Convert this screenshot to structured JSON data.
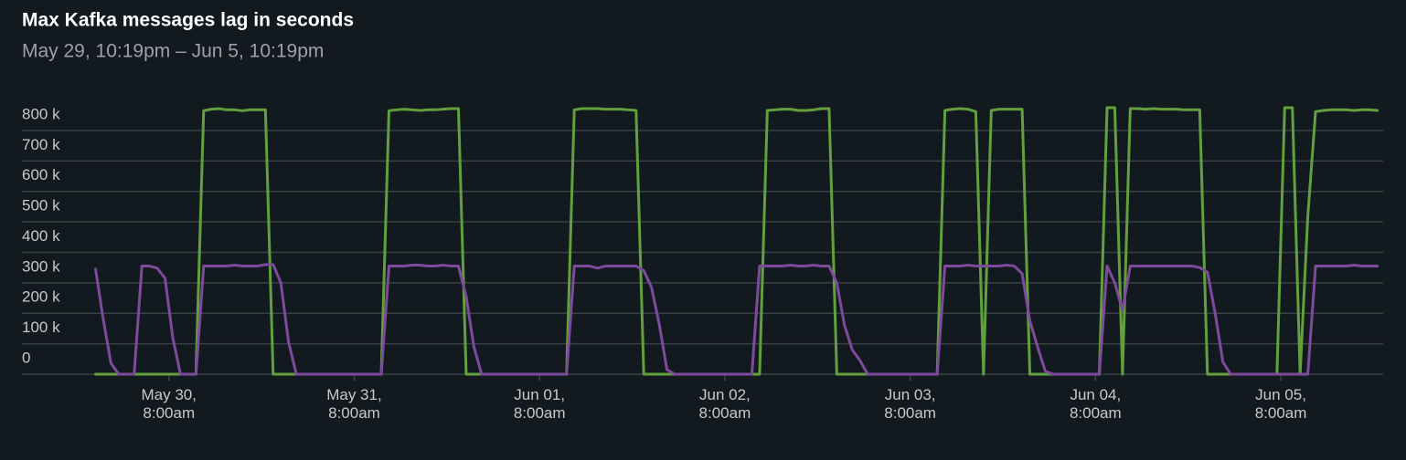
{
  "chart_data": {
    "type": "line",
    "title": "Max Kafka messages lag in seconds",
    "subtitle": "May 29, 10:19pm – Jun 5, 10:19pm",
    "grid": true,
    "xlim": [
      22.32,
      190.32
    ],
    "ylim": [
      0,
      880000
    ],
    "yticks": [
      0,
      {
        "value": 100000,
        "label": "100 k"
      },
      {
        "value": 200000,
        "label": "200 k"
      },
      {
        "value": 300000,
        "label": "300 k"
      },
      {
        "value": 400000,
        "label": "400 k"
      },
      {
        "value": 500000,
        "label": "500 k"
      },
      {
        "value": 600000,
        "label": "600 k"
      },
      {
        "value": 700000,
        "label": "700 k"
      },
      {
        "value": 800000,
        "label": "800 k"
      }
    ],
    "xticks": [
      {
        "value": 32,
        "label": "May 30, 8:00am"
      },
      {
        "value": 56,
        "label": "May 31, 8:00am"
      },
      {
        "value": 80,
        "label": "Jun 01, 8:00am"
      },
      {
        "value": 104,
        "label": "Jun 02, 8:00am"
      },
      {
        "value": 128,
        "label": "Jun 03, 8:00am"
      },
      {
        "value": 152,
        "label": "Jun 04, 8:00am"
      },
      {
        "value": 176,
        "label": "Jun 05, 8:00am"
      }
    ],
    "x": [
      22.5,
      23.5,
      24.5,
      25.5,
      26.5,
      27.5,
      28.5,
      29.5,
      30.5,
      31.5,
      32.5,
      33.5,
      34.5,
      35.5,
      36.5,
      37.5,
      38.5,
      39.5,
      40.5,
      41.5,
      42.5,
      43.5,
      44.5,
      45.5,
      46.5,
      47.5,
      48.5,
      49.5,
      50.5,
      51.5,
      52.5,
      53.5,
      54.5,
      55.5,
      56.5,
      57.5,
      58.5,
      59.5,
      60.5,
      61.5,
      62.5,
      63.5,
      64.5,
      65.5,
      66.5,
      67.5,
      68.5,
      69.5,
      70.5,
      71.5,
      72.5,
      73.5,
      74.5,
      75.5,
      76.5,
      77.5,
      78.5,
      79.5,
      80.5,
      81.5,
      82.5,
      83.5,
      84.5,
      85.5,
      86.5,
      87.5,
      88.5,
      89.5,
      90.5,
      91.5,
      92.5,
      93.5,
      94.5,
      95.5,
      96.5,
      97.5,
      98.5,
      99.5,
      100.5,
      101.5,
      102.5,
      103.5,
      104.5,
      105.5,
      106.5,
      107.5,
      108.5,
      109.5,
      110.5,
      111.5,
      112.5,
      113.5,
      114.5,
      115.5,
      116.5,
      117.5,
      118.5,
      119.5,
      120.5,
      121.5,
      122.5,
      123.5,
      124.5,
      125.5,
      126.5,
      127.5,
      128.5,
      129.5,
      130.5,
      131.5,
      132.5,
      133.5,
      134.5,
      135.5,
      136.5,
      137.5,
      138.5,
      139.5,
      140.5,
      141.5,
      142.5,
      143.5,
      144.5,
      145.5,
      146.5,
      147.5,
      148.5,
      149.5,
      150.5,
      151.5,
      152.5,
      153.5,
      154.5,
      155.5,
      156.5,
      157.5,
      158.5,
      159.5,
      160.5,
      161.5,
      162.5,
      163.5,
      164.5,
      165.5,
      166.5,
      167.5,
      168.5,
      169.5,
      170.5,
      171.5,
      172.5,
      173.5,
      174.5,
      175.5,
      176.5,
      177.5,
      178.5,
      179.5,
      180.5,
      181.5,
      182.5,
      183.5,
      184.5,
      185.5,
      186.5,
      187.5,
      188.5
    ],
    "series": [
      {
        "color": "#62a03e",
        "values": [
          0,
          0,
          0,
          0,
          0,
          0,
          0,
          0,
          0,
          0,
          0,
          0,
          0,
          0,
          865000,
          870000,
          872000,
          868000,
          868000,
          865000,
          868000,
          868000,
          868000,
          0,
          0,
          0,
          0,
          0,
          0,
          0,
          0,
          0,
          0,
          0,
          0,
          0,
          0,
          0,
          865000,
          868000,
          870000,
          868000,
          866000,
          868000,
          868000,
          870000,
          872000,
          872000,
          0,
          0,
          0,
          0,
          0,
          0,
          0,
          0,
          0,
          0,
          0,
          0,
          0,
          0,
          868000,
          872000,
          872000,
          872000,
          870000,
          870000,
          870000,
          868000,
          866000,
          0,
          0,
          0,
          0,
          0,
          0,
          0,
          0,
          0,
          0,
          0,
          0,
          0,
          0,
          0,
          0,
          866000,
          868000,
          870000,
          870000,
          866000,
          866000,
          868000,
          872000,
          872000,
          0,
          0,
          0,
          0,
          0,
          0,
          0,
          0,
          0,
          0,
          0,
          0,
          0,
          0,
          866000,
          870000,
          872000,
          870000,
          862000,
          0,
          866000,
          870000,
          870000,
          870000,
          870000,
          0,
          0,
          0,
          0,
          0,
          0,
          0,
          0,
          0,
          0,
          875000,
          875000,
          0,
          872000,
          872000,
          870000,
          872000,
          870000,
          870000,
          870000,
          868000,
          868000,
          868000,
          0,
          0,
          0,
          0,
          0,
          0,
          0,
          0,
          0,
          0,
          875000,
          875000,
          0,
          520000,
          862000,
          866000,
          868000,
          868000,
          868000,
          866000,
          868000,
          868000,
          866000
        ]
      },
      {
        "color": "#7e4a9c",
        "values": [
          345000,
          180000,
          36000,
          0,
          0,
          0,
          355000,
          355000,
          348000,
          315000,
          120000,
          0,
          0,
          0,
          355000,
          355000,
          355000,
          355000,
          358000,
          355000,
          355000,
          355000,
          360000,
          360000,
          300000,
          105000,
          0,
          0,
          0,
          0,
          0,
          0,
          0,
          0,
          0,
          0,
          0,
          0,
          355000,
          355000,
          355000,
          358000,
          358000,
          355000,
          355000,
          358000,
          355000,
          355000,
          255000,
          90000,
          0,
          0,
          0,
          0,
          0,
          0,
          0,
          0,
          0,
          0,
          0,
          0,
          355000,
          355000,
          355000,
          348000,
          355000,
          355000,
          355000,
          355000,
          355000,
          340000,
          285000,
          165000,
          15000,
          0,
          0,
          0,
          0,
          0,
          0,
          0,
          0,
          0,
          0,
          0,
          355000,
          355000,
          355000,
          355000,
          358000,
          355000,
          355000,
          358000,
          355000,
          355000,
          300000,
          160000,
          80000,
          45000,
          0,
          0,
          0,
          0,
          0,
          0,
          0,
          0,
          0,
          0,
          355000,
          355000,
          355000,
          358000,
          355000,
          355000,
          355000,
          355000,
          358000,
          355000,
          330000,
          175000,
          90000,
          10000,
          0,
          0,
          0,
          0,
          0,
          0,
          0,
          355000,
          300000,
          210000,
          355000,
          355000,
          355000,
          355000,
          355000,
          355000,
          355000,
          355000,
          355000,
          350000,
          335000,
          200000,
          40000,
          0,
          0,
          0,
          0,
          0,
          0,
          0,
          0,
          0,
          0,
          0,
          355000,
          355000,
          355000,
          355000,
          355000,
          358000,
          355000,
          355000,
          355000
        ]
      }
    ]
  }
}
